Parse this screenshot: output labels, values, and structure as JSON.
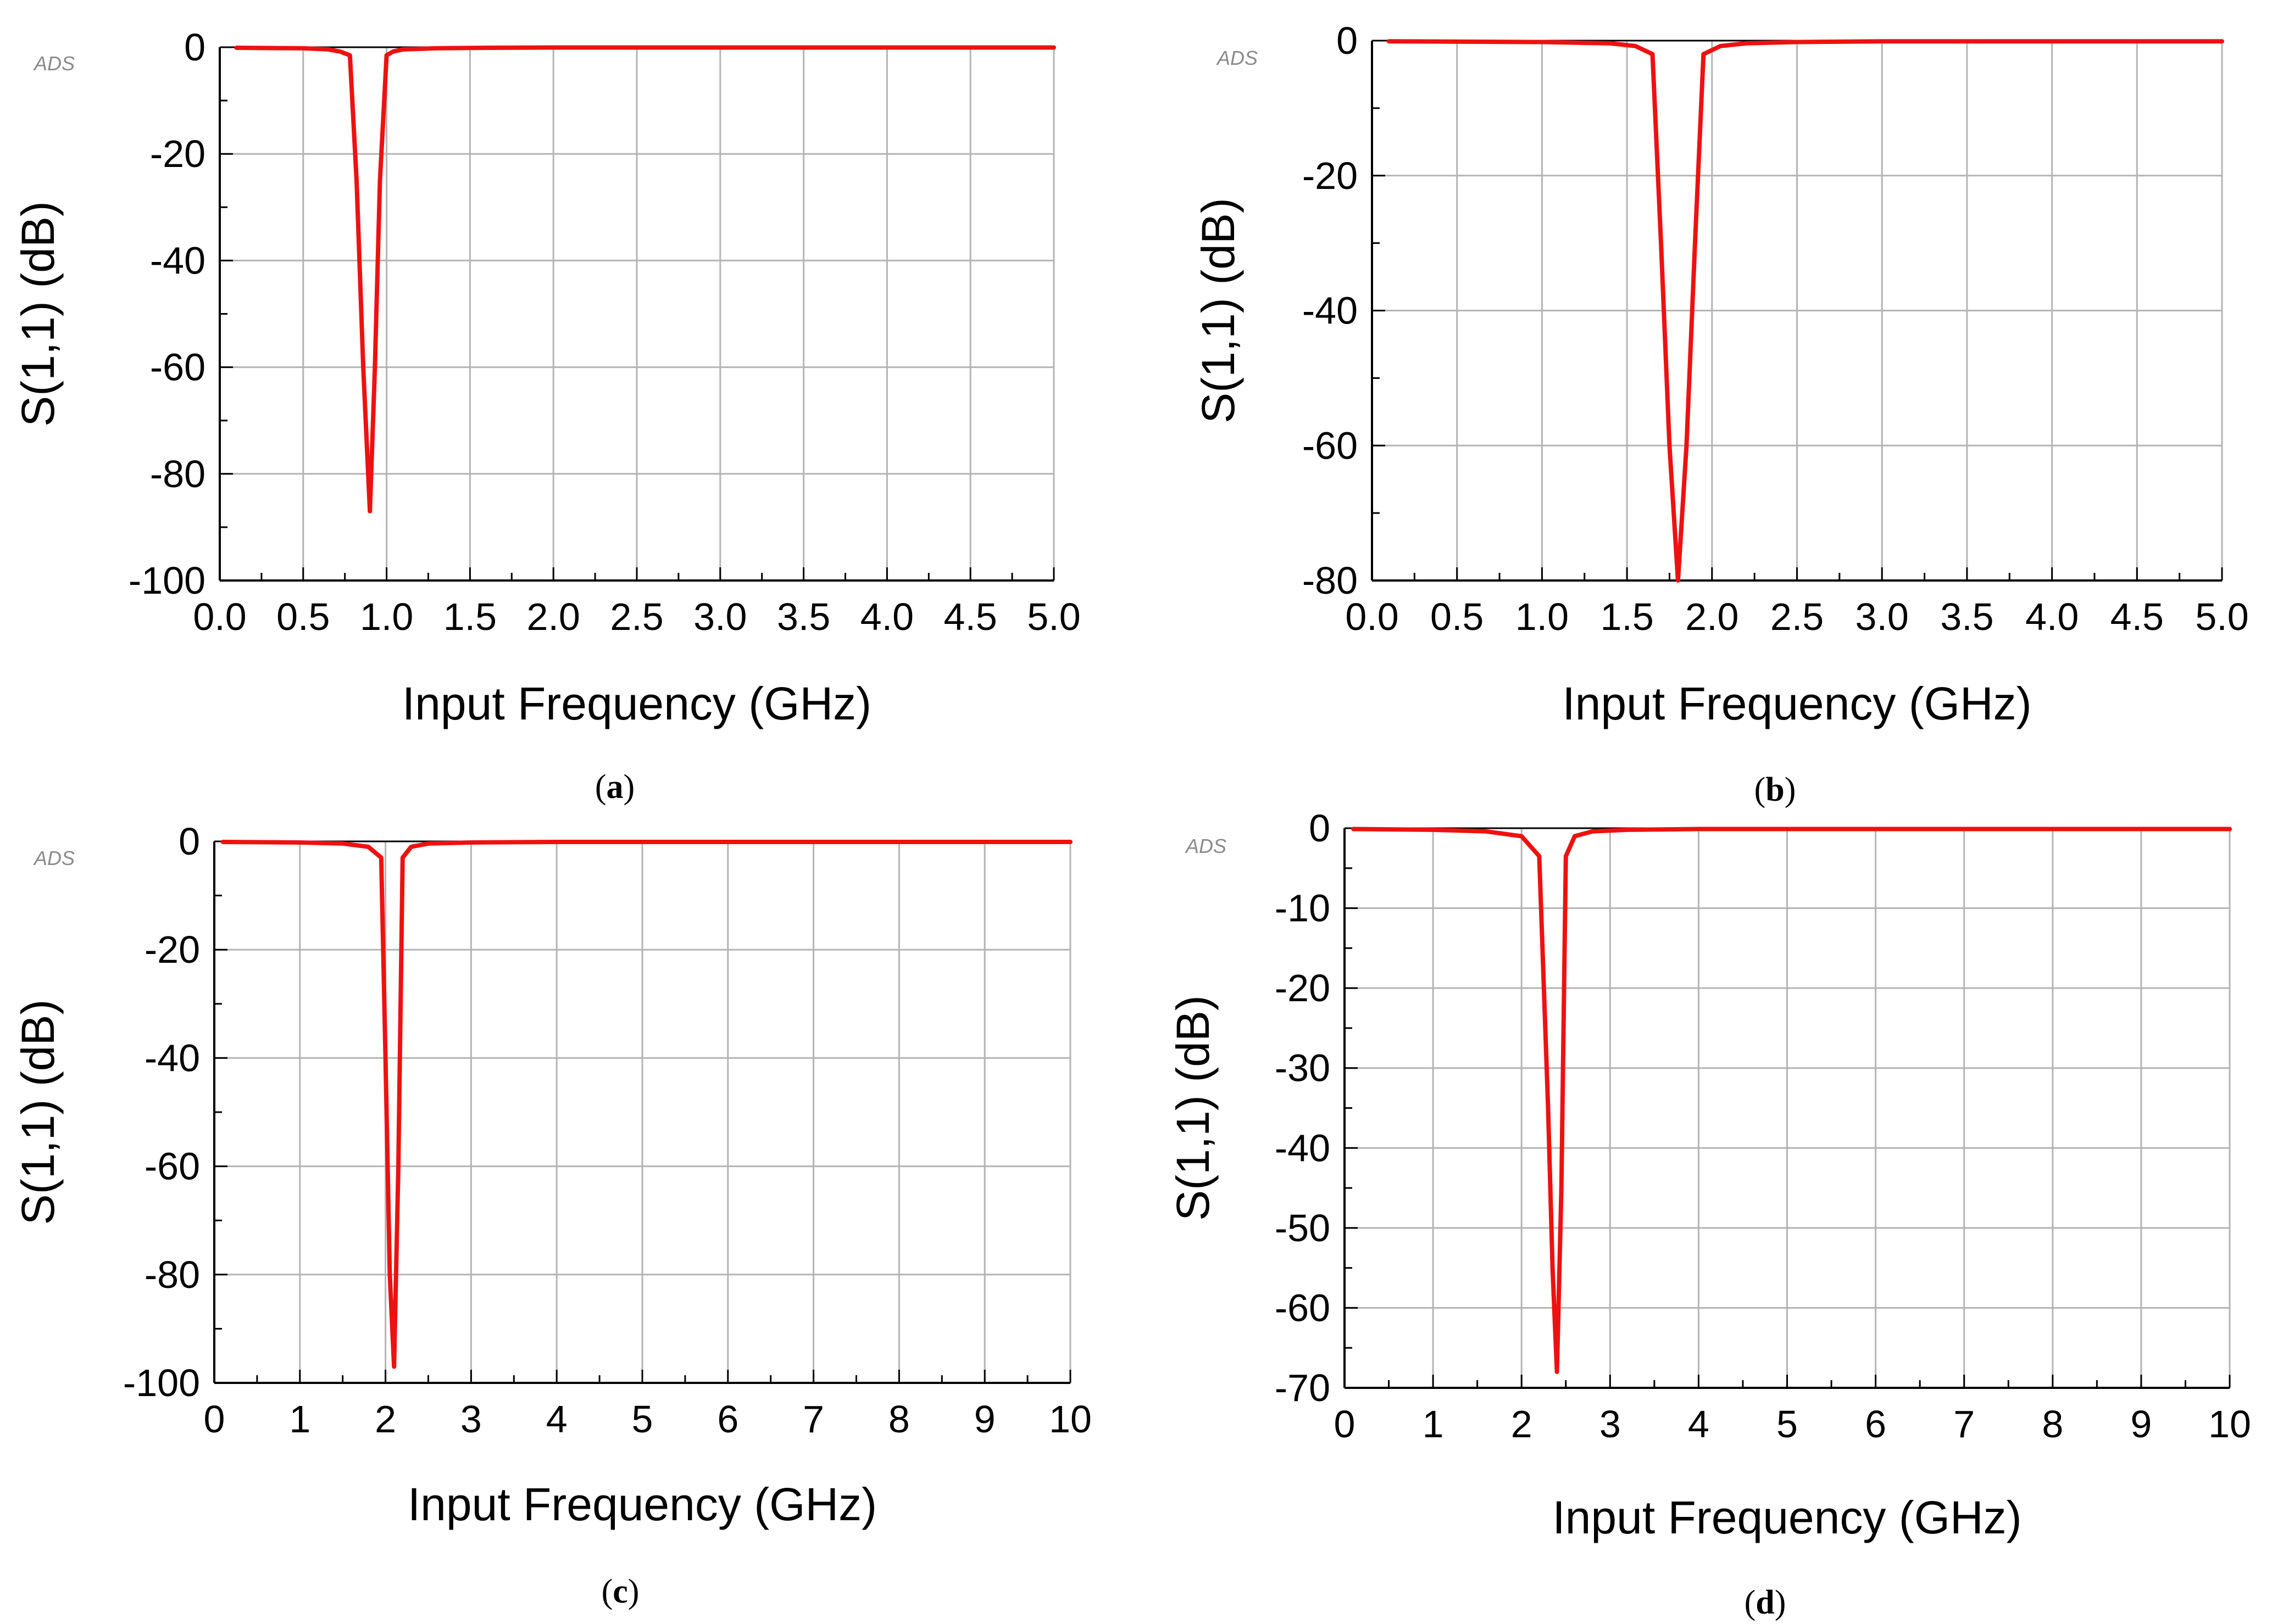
{
  "figure": {
    "watermark": "ADS"
  },
  "chart_data": [
    {
      "id": "a",
      "type": "line",
      "panel_label": "a",
      "xlabel": "Input Frequency (GHz)",
      "ylabel": "S(1,1) (dB)",
      "xlim": [
        0.0,
        5.0
      ],
      "ylim": [
        -100,
        0
      ],
      "xticks": [
        0.0,
        0.5,
        1.0,
        1.5,
        2.0,
        2.5,
        3.0,
        3.5,
        4.0,
        4.5,
        5.0
      ],
      "xtick_labels": [
        "0.0",
        "0.5",
        "1.0",
        "1.5",
        "2.0",
        "2.5",
        "3.0",
        "3.5",
        "4.0",
        "4.5",
        "5.0"
      ],
      "yticks": [
        0,
        -20,
        -40,
        -60,
        -80,
        -100
      ],
      "ytick_labels": [
        "0",
        "-20",
        "-40",
        "-60",
        "-80",
        "-100"
      ],
      "minor_x_step": 0.25,
      "minor_y_step": 10,
      "grid": true,
      "series": [
        {
          "name": "S(1,1)",
          "color": "#ee1111",
          "x": [
            0.1,
            0.5,
            0.65,
            0.72,
            0.78,
            0.82,
            0.86,
            0.9,
            0.93,
            0.96,
            1.0,
            1.04,
            1.1,
            1.3,
            1.6,
            2.0,
            3.0,
            4.0,
            5.0
          ],
          "y": [
            -0.1,
            -0.2,
            -0.4,
            -0.8,
            -1.5,
            -25,
            -60,
            -87,
            -60,
            -25,
            -1.5,
            -0.8,
            -0.4,
            -0.2,
            -0.1,
            -0.05,
            -0.05,
            -0.05,
            -0.05
          ]
        }
      ]
    },
    {
      "id": "b",
      "type": "line",
      "panel_label": "b",
      "xlabel": "Input Frequency (GHz)",
      "ylabel": "S(1,1) (dB)",
      "xlim": [
        0.0,
        5.0
      ],
      "ylim": [
        -80,
        0
      ],
      "xticks": [
        0.0,
        0.5,
        1.0,
        1.5,
        2.0,
        2.5,
        3.0,
        3.5,
        4.0,
        4.5,
        5.0
      ],
      "xtick_labels": [
        "0.0",
        "0.5",
        "1.0",
        "1.5",
        "2.0",
        "2.5",
        "3.0",
        "3.5",
        "4.0",
        "4.5",
        "5.0"
      ],
      "yticks": [
        0,
        -20,
        -40,
        -60,
        -80
      ],
      "ytick_labels": [
        "0",
        "-20",
        "-40",
        "-60",
        "-80"
      ],
      "minor_x_step": 0.25,
      "minor_y_step": 10,
      "grid": true,
      "series": [
        {
          "name": "S(1,1)",
          "color": "#ee1111",
          "x": [
            0.1,
            1.0,
            1.4,
            1.55,
            1.65,
            1.7,
            1.75,
            1.8,
            1.85,
            1.9,
            1.95,
            2.05,
            2.2,
            2.5,
            3.0,
            4.0,
            5.0
          ],
          "y": [
            -0.1,
            -0.2,
            -0.4,
            -0.8,
            -2.0,
            -30,
            -60,
            -80,
            -60,
            -30,
            -2.0,
            -0.8,
            -0.4,
            -0.2,
            -0.1,
            -0.1,
            -0.1
          ]
        }
      ]
    },
    {
      "id": "c",
      "type": "line",
      "panel_label": "c",
      "xlabel": "Input Frequency (GHz)",
      "ylabel": "S(1,1) (dB)",
      "xlim": [
        0,
        10
      ],
      "ylim": [
        -100,
        0
      ],
      "xticks": [
        0,
        1,
        2,
        3,
        4,
        5,
        6,
        7,
        8,
        9,
        10
      ],
      "xtick_labels": [
        "0",
        "1",
        "2",
        "3",
        "4",
        "5",
        "6",
        "7",
        "8",
        "9",
        "10"
      ],
      "yticks": [
        0,
        -20,
        -40,
        -60,
        -80,
        -100
      ],
      "ytick_labels": [
        "0",
        "-20",
        "-40",
        "-60",
        "-80",
        "-100"
      ],
      "minor_x_step": 0.5,
      "minor_y_step": 10,
      "grid": true,
      "series": [
        {
          "name": "S(1,1)",
          "color": "#ee1111",
          "x": [
            0.1,
            1.0,
            1.5,
            1.8,
            1.95,
            2.0,
            2.05,
            2.1,
            2.15,
            2.2,
            2.3,
            2.5,
            3.0,
            4.0,
            6.0,
            8.0,
            10.0
          ],
          "y": [
            -0.1,
            -0.2,
            -0.4,
            -1.0,
            -3.0,
            -40,
            -80,
            -97,
            -60,
            -3.0,
            -1.0,
            -0.4,
            -0.2,
            -0.1,
            -0.1,
            -0.1,
            -0.1
          ]
        }
      ]
    },
    {
      "id": "d",
      "type": "line",
      "panel_label": "d",
      "xlabel": "Input Frequency (GHz)",
      "ylabel": "S(1,1) (dB)",
      "xlim": [
        0,
        10
      ],
      "ylim": [
        -70,
        0
      ],
      "xticks": [
        0,
        1,
        2,
        3,
        4,
        5,
        6,
        7,
        8,
        9,
        10
      ],
      "xtick_labels": [
        "0",
        "1",
        "2",
        "3",
        "4",
        "5",
        "6",
        "7",
        "8",
        "9",
        "10"
      ],
      "yticks": [
        0,
        -10,
        -20,
        -30,
        -40,
        -50,
        -60,
        -70
      ],
      "ytick_labels": [
        "0",
        "-10",
        "-20",
        "-30",
        "-40",
        "-50",
        "-60",
        "-70"
      ],
      "minor_x_step": 0.5,
      "minor_y_step": 5,
      "grid": true,
      "series": [
        {
          "name": "S(1,1)",
          "color": "#ee1111",
          "x": [
            0.1,
            1.0,
            1.6,
            2.0,
            2.2,
            2.3,
            2.35,
            2.4,
            2.45,
            2.5,
            2.6,
            2.8,
            3.2,
            4.0,
            6.0,
            8.0,
            10.0
          ],
          "y": [
            -0.1,
            -0.2,
            -0.4,
            -1.0,
            -3.5,
            -35,
            -55,
            -68,
            -45,
            -3.5,
            -1.0,
            -0.4,
            -0.2,
            -0.1,
            -0.1,
            -0.1,
            -0.1
          ]
        }
      ]
    }
  ]
}
